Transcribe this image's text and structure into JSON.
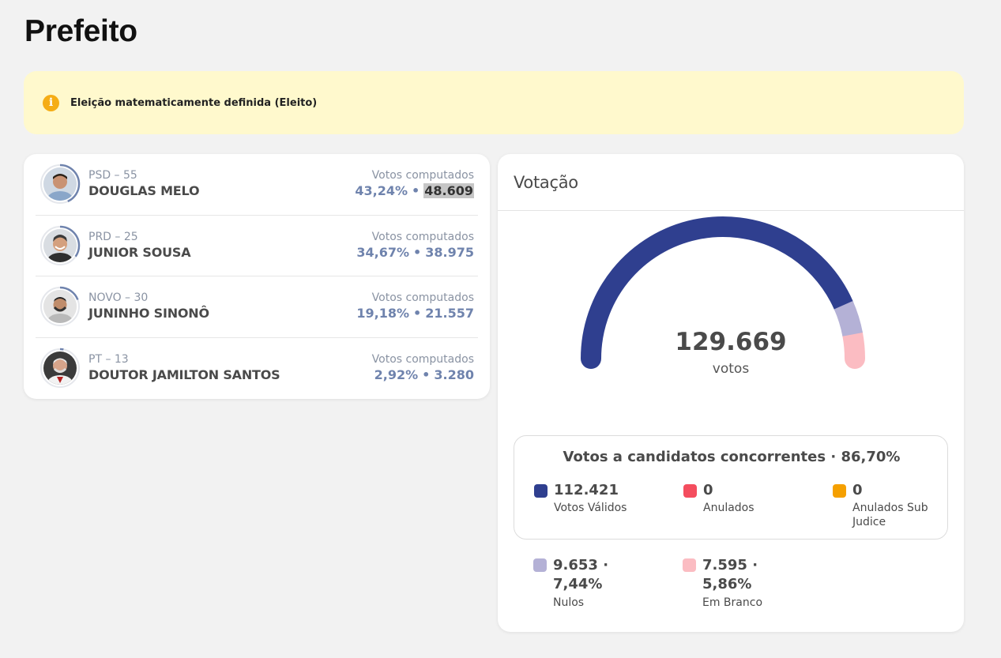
{
  "page": {
    "title": "Prefeito"
  },
  "notice": {
    "icon": "info-icon",
    "text": "Eleição matematicamente definida (Eleito)"
  },
  "candidates": [
    {
      "party": "PSD – 55",
      "name": "DOUGLAS MELO",
      "votes_label": "Votos computados",
      "percent": "43,24%",
      "separator": "•",
      "votes": "48.609",
      "share": 0.4324
    },
    {
      "party": "PRD – 25",
      "name": "JUNIOR SOUSA",
      "votes_label": "Votos computados",
      "percent": "34,67%",
      "separator": "•",
      "votes": "38.975",
      "share": 0.3467
    },
    {
      "party": "NOVO – 30",
      "name": "JUNINHO SINONÔ",
      "votes_label": "Votos computados",
      "percent": "19,18%",
      "separator": "•",
      "votes": "21.557",
      "share": 0.1918
    },
    {
      "party": "PT – 13",
      "name": "DOUTOR JAMILTON SANTOS",
      "votes_label": "Votos computados",
      "percent": "2,92%",
      "separator": "•",
      "votes": "3.280",
      "share": 0.0292
    }
  ],
  "voting": {
    "title": "Votação",
    "total": "129.669",
    "unit": "votos",
    "gauge_shares": [
      {
        "name": "Votos Válidos",
        "share": 0.867,
        "color": "#2f3f8f"
      },
      {
        "name": "Nulos",
        "share": 0.0744,
        "color": "#b4b1d6"
      },
      {
        "name": "Em Branco",
        "share": 0.0586,
        "color": "#fbbcc2"
      }
    ],
    "competing": {
      "title": "Votos a candidatos concorrentes · 86,70%",
      "items": [
        {
          "value": "112.421",
          "label": "Votos Válidos",
          "color": "#2f3f8f"
        },
        {
          "value": "0",
          "label": "Anulados",
          "color": "#f44d5e"
        },
        {
          "value": "0",
          "label": "Anulados Sub Judice",
          "color": "#f5a000"
        }
      ]
    },
    "others": [
      {
        "value": "9.653 · 7,44%",
        "label": "Nulos",
        "color": "#b4b1d6"
      },
      {
        "value": "7.595 · 5,86%",
        "label": "Em Branco",
        "color": "#fbbcc2"
      }
    ]
  }
}
